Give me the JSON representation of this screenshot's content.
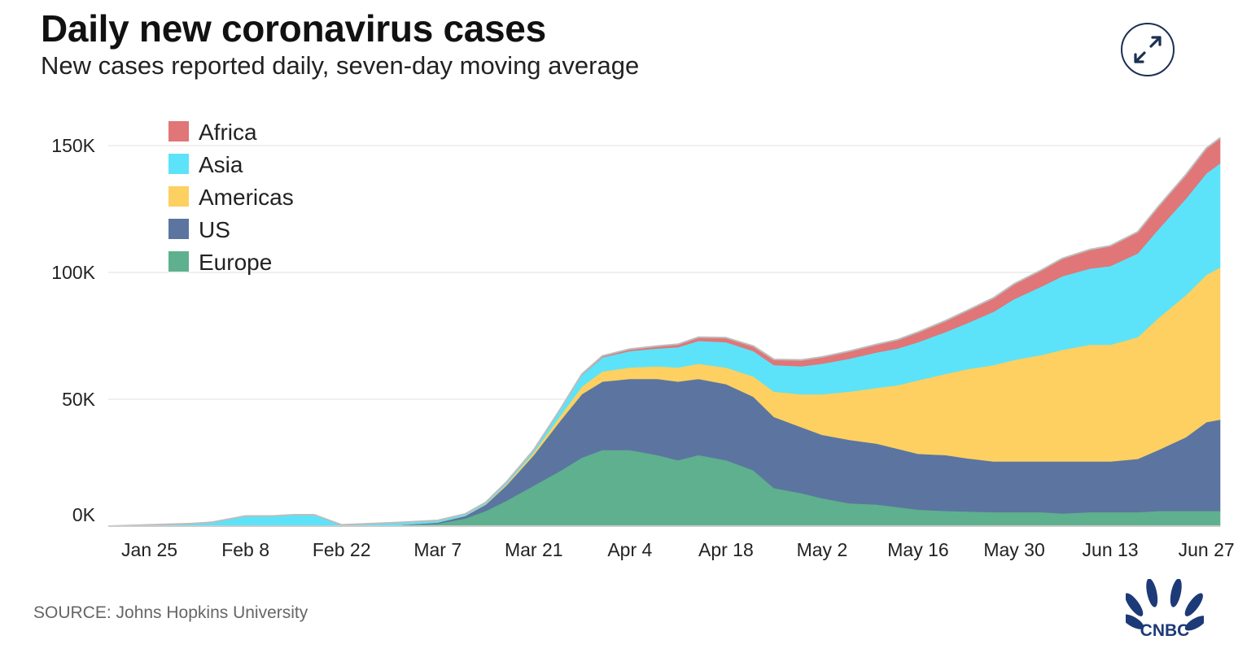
{
  "header": {
    "title": "Daily new coronavirus cases",
    "subtitle": "New cases reported daily, seven-day moving average"
  },
  "footer": {
    "source": "SOURCE: Johns Hopkins University",
    "logo_text": "CNBC"
  },
  "expand_button": {
    "icon": "expand-arrows-icon",
    "color": "#1d2f55"
  },
  "chart_data": {
    "type": "area",
    "stacked": true,
    "title": "Daily new coronavirus cases",
    "subtitle": "New cases reported daily, seven-day moving average",
    "xlabel": "",
    "ylabel": "",
    "ylim": [
      0,
      150000
    ],
    "yticks": [
      0,
      50000,
      100000,
      150000
    ],
    "ytick_labels": [
      "0K",
      "50K",
      "100K",
      "150K"
    ],
    "xlim": [
      "2020-01-19",
      "2020-06-29"
    ],
    "xticks": [
      "2020-01-25",
      "2020-02-08",
      "2020-02-22",
      "2020-03-07",
      "2020-03-21",
      "2020-04-04",
      "2020-04-18",
      "2020-05-02",
      "2020-05-16",
      "2020-05-30",
      "2020-06-13",
      "2020-06-27"
    ],
    "xtick_labels": [
      "Jan 25",
      "Feb 8",
      "Feb 22",
      "Mar 7",
      "Mar 21",
      "Apr 4",
      "Apr 18",
      "May 2",
      "May 16",
      "May 30",
      "Jun 13",
      "Jun 27"
    ],
    "grid": true,
    "legend_position": "top-left",
    "x": [
      "2020-01-19",
      "2020-01-31",
      "2020-02-03",
      "2020-02-08",
      "2020-02-12",
      "2020-02-15",
      "2020-02-18",
      "2020-02-22",
      "2020-03-01",
      "2020-03-07",
      "2020-03-11",
      "2020-03-14",
      "2020-03-17",
      "2020-03-21",
      "2020-03-25",
      "2020-03-28",
      "2020-03-31",
      "2020-04-04",
      "2020-04-08",
      "2020-04-11",
      "2020-04-14",
      "2020-04-18",
      "2020-04-22",
      "2020-04-25",
      "2020-04-29",
      "2020-05-02",
      "2020-05-06",
      "2020-05-10",
      "2020-05-13",
      "2020-05-16",
      "2020-05-20",
      "2020-05-23",
      "2020-05-27",
      "2020-05-30",
      "2020-06-03",
      "2020-06-06",
      "2020-06-10",
      "2020-06-13",
      "2020-06-17",
      "2020-06-20",
      "2020-06-24",
      "2020-06-27",
      "2020-06-29"
    ],
    "series": [
      {
        "name": "Europe",
        "color": "#5fb08e",
        "values": [
          0,
          0,
          0,
          0,
          0,
          0,
          0,
          0,
          300,
          1000,
          3000,
          6000,
          10000,
          16000,
          22000,
          27000,
          30000,
          30000,
          28000,
          26000,
          28000,
          26000,
          22000,
          15000,
          13000,
          11000,
          9000,
          8500,
          7500,
          6500,
          6000,
          5800,
          5500,
          5500,
          5500,
          5000,
          5500,
          5500,
          5500,
          6000,
          6000,
          6000,
          6000
        ]
      },
      {
        "name": "US",
        "color": "#5b75a0",
        "values": [
          0,
          0,
          0,
          0,
          0,
          0,
          0,
          0,
          100,
          400,
          1000,
          2500,
          6000,
          12000,
          20000,
          25000,
          27000,
          28000,
          30000,
          31000,
          30000,
          30000,
          29000,
          28000,
          26000,
          25000,
          25000,
          24000,
          23000,
          22000,
          22000,
          21000,
          20000,
          20000,
          20000,
          20500,
          20000,
          20000,
          21000,
          24000,
          29000,
          35000,
          36000
        ]
      },
      {
        "name": "Americas",
        "color": "#fdd061",
        "values": [
          0,
          0,
          0,
          0,
          0,
          0,
          0,
          0,
          0,
          50,
          100,
          200,
          500,
          1000,
          2000,
          3000,
          4000,
          4500,
          5000,
          5500,
          6000,
          6500,
          8000,
          10000,
          13000,
          16000,
          19000,
          22000,
          25000,
          29000,
          32000,
          35000,
          38000,
          40000,
          42000,
          44000,
          46000,
          46000,
          48000,
          52000,
          56000,
          58000,
          60000
        ]
      },
      {
        "name": "Asia",
        "color": "#5ce3f9",
        "values": [
          0,
          1000,
          1500,
          4000,
          4000,
          4500,
          4500,
          500,
          1000,
          800,
          700,
          700,
          800,
          1000,
          2500,
          4500,
          5500,
          6500,
          7000,
          8000,
          9000,
          10000,
          10000,
          10500,
          11000,
          12000,
          13000,
          14000,
          14500,
          15000,
          16500,
          18000,
          21000,
          24000,
          27000,
          29000,
          30000,
          31000,
          33000,
          35000,
          38000,
          40000,
          41000
        ]
      },
      {
        "name": "Africa",
        "color": "#e07677",
        "values": [
          0,
          0,
          0,
          0,
          0,
          0,
          0,
          0,
          0,
          0,
          0,
          0,
          50,
          100,
          200,
          400,
          600,
          800,
          1000,
          1200,
          1500,
          1800,
          2000,
          2200,
          2500,
          2700,
          3000,
          3200,
          3500,
          4000,
          4500,
          5000,
          5500,
          6000,
          6500,
          7000,
          7500,
          8000,
          8500,
          9000,
          9500,
          10000,
          10000
        ]
      }
    ],
    "legend_order": [
      "Africa",
      "Asia",
      "Americas",
      "US",
      "Europe"
    ]
  }
}
